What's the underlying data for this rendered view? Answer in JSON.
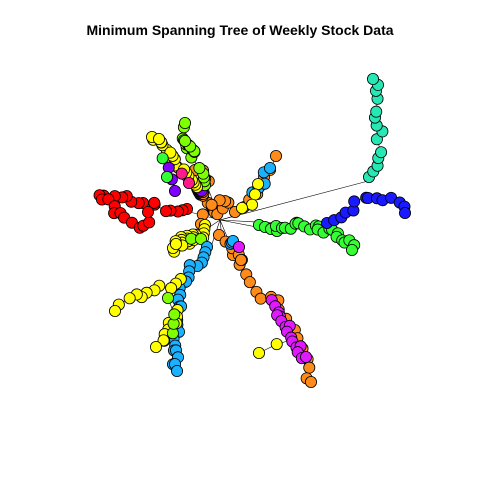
{
  "title": "Minimum Spanning Tree of Weekly Stock Data",
  "edge_color": "#000000",
  "node_outline_color": "#000000",
  "palette": {
    "red": "#ff0000",
    "orange": "#ff8c1a",
    "yellow": "#ffff00",
    "lime": "#80ff00",
    "green": "#33ff33",
    "aqua": "#26e8b4",
    "cyan": "#1ab2ff",
    "blue": "#1a1aff",
    "violet": "#8000ff",
    "magenta": "#e01aff",
    "pink": "#ff1a8c"
  },
  "tree": {
    "hub": {
      "color": "orange",
      "branches": [
        {
          "color": "orange",
          "count": 16,
          "nodes": [
            {
              "color": "orange",
              "count": 9
            },
            {
              "color": "orange",
              "count": 14
            },
            {
              "color": "red",
              "count": 2
            },
            {
              "color": "violet",
              "count": 2
            }
          ]
        },
        {
          "color": "red",
          "count": 26
        },
        {
          "color": "lime",
          "count": 12,
          "nodes": [
            {
              "color": "lime",
              "count": 8
            }
          ]
        },
        {
          "color": "yellow",
          "count": 14,
          "nodes": [
            {
              "color": "yellow",
              "count": 8
            },
            {
              "color": "pink",
              "count": 2
            },
            {
              "color": "violet",
              "count": 3
            },
            {
              "color": "green",
              "count": 2
            }
          ]
        },
        {
          "color": "orange",
          "count": 8,
          "nodes": [
            {
              "color": "cyan",
              "count": 5
            },
            {
              "color": "yellow",
              "count": 4
            }
          ]
        },
        {
          "color": "green",
          "count": 26
        },
        {
          "color": "blue",
          "count": 14
        },
        {
          "color": "aqua",
          "count": 14
        },
        {
          "color": "yellow",
          "count": 14,
          "nodes": [
            {
              "color": "yellow",
              "count": 12
            },
            {
              "color": "lime",
              "count": 2
            }
          ]
        },
        {
          "color": "cyan",
          "count": 28,
          "nodes": [
            {
              "color": "yellow",
              "count": 11
            },
            {
              "color": "yellow",
              "count": 9
            },
            {
              "color": "lime",
              "count": 4
            }
          ]
        },
        {
          "color": "orange",
          "count": 18,
          "nodes": [
            {
              "color": "magenta",
              "count": 16
            },
            {
              "color": "yellow",
              "count": 2
            }
          ]
        },
        {
          "color": "orange",
          "count": 6,
          "nodes": [
            {
              "color": "cyan",
              "count": 3
            },
            {
              "color": "magenta",
              "count": 1
            }
          ]
        }
      ]
    }
  }
}
